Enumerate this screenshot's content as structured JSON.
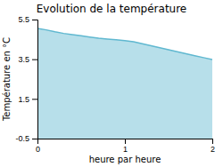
{
  "chart_data": {
    "type": "area",
    "title": "Evolution de la température",
    "xlabel": "heure par heure",
    "ylabel": "Température en °C",
    "x": [
      0.0,
      0.1,
      0.2,
      0.3,
      0.4,
      0.5,
      0.6,
      0.7,
      0.8,
      0.9,
      1.0,
      1.1,
      1.2,
      1.3,
      1.4,
      1.5,
      1.6,
      1.7,
      1.8,
      1.9,
      2.0
    ],
    "values": [
      5.05,
      4.98,
      4.88,
      4.8,
      4.74,
      4.68,
      4.62,
      4.56,
      4.52,
      4.48,
      4.44,
      4.38,
      4.28,
      4.18,
      4.08,
      3.98,
      3.88,
      3.78,
      3.68,
      3.58,
      3.48
    ],
    "color": "#60b8d0",
    "xlim": [
      0,
      2
    ],
    "xticks": [
      0,
      1,
      2
    ],
    "ylim": [
      -0.5,
      5.5
    ],
    "yticks": [
      -0.5,
      1.5,
      3.5,
      5.5
    ]
  }
}
